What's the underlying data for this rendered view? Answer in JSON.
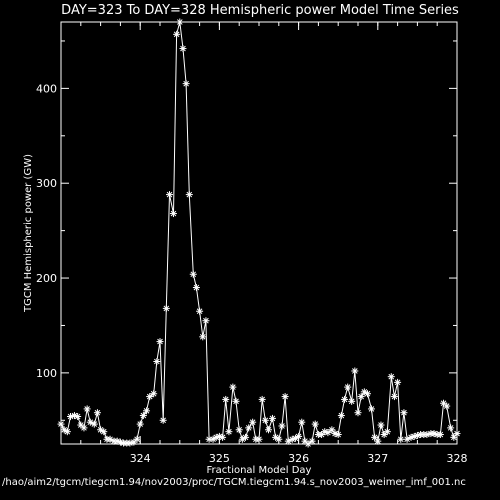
{
  "chart_data": {
    "type": "line",
    "title": "DAY=323 To DAY=328 Hemispheric power Model Time Series",
    "xlabel": "Fractional Model Day",
    "ylabel": "TGCM Hemispheric power (GW)",
    "footer": "/hao/aim2/tgcm/tiegcm1.94/nov2003/proc/TGCM.tiegcm1.94.s_nov2003_weimer_imf_001.nc",
    "xlim": [
      323.0,
      328.0
    ],
    "ylim": [
      25,
      470
    ],
    "xticks": [
      "324",
      "325",
      "326",
      "327",
      "328"
    ],
    "yticks": [
      "100",
      "200",
      "300",
      "400"
    ],
    "grid": false,
    "marker": "asterisk",
    "series": [
      {
        "x": [
          323.0,
          323.04,
          323.08,
          323.12,
          323.17,
          323.21,
          323.25,
          323.29,
          323.33,
          323.37,
          323.42,
          323.46,
          323.5,
          323.54,
          323.58,
          323.62,
          323.67,
          323.71,
          323.75,
          323.79,
          323.83,
          323.87,
          323.92,
          323.96,
          324.0,
          324.04,
          324.08,
          324.12,
          324.17,
          324.21,
          324.25,
          324.29,
          324.33,
          324.37,
          324.42,
          324.46,
          324.5,
          324.54,
          324.58,
          324.62,
          324.67,
          324.71,
          324.75,
          324.79,
          324.83,
          324.87,
          324.92,
          324.96,
          325.0,
          325.04,
          325.08,
          325.12,
          325.17,
          325.21,
          325.25,
          325.29,
          325.33,
          325.37,
          325.42,
          325.46,
          325.5,
          325.54,
          325.58,
          325.62,
          325.67,
          325.71,
          325.75,
          325.79,
          325.83,
          325.87,
          325.92,
          325.96,
          326.0,
          326.04,
          326.08,
          326.12,
          326.17,
          326.21,
          326.25,
          326.29,
          326.33,
          326.37,
          326.42,
          326.46,
          326.5,
          326.54,
          326.58,
          326.62,
          326.67,
          326.71,
          326.75,
          326.79,
          326.83,
          326.87,
          326.92,
          326.96,
          327.0,
          327.04,
          327.08,
          327.12,
          327.17,
          327.21,
          327.25,
          327.29,
          327.33,
          327.37,
          327.42,
          327.46,
          327.5,
          327.54,
          327.58,
          327.62,
          327.67,
          327.71,
          327.75,
          327.79,
          327.83,
          327.87,
          327.92,
          327.96,
          328.0
        ],
        "values": [
          46,
          40,
          38,
          54,
          55,
          54,
          45,
          42,
          62,
          48,
          46,
          58,
          40,
          38,
          30,
          30,
          28,
          28,
          27,
          26,
          26,
          26,
          27,
          30,
          46,
          55,
          60,
          75,
          78,
          112,
          133,
          50,
          168,
          288,
          268,
          457,
          470,
          442,
          405,
          288,
          204,
          190,
          165,
          138,
          155,
          30,
          30,
          32,
          33,
          32,
          72,
          38,
          85,
          70,
          40,
          30,
          32,
          42,
          48,
          30,
          30,
          72,
          50,
          40,
          52,
          32,
          30,
          44,
          75,
          28,
          30,
          31,
          33,
          48,
          28,
          25,
          28,
          46,
          35,
          35,
          38,
          37,
          40,
          36,
          35,
          55,
          72,
          85,
          70,
          102,
          58,
          75,
          80,
          78,
          62,
          32,
          28,
          45,
          35,
          38,
          96,
          75,
          90,
          30,
          58,
          30,
          32,
          33,
          34,
          35,
          35,
          35,
          36,
          36,
          35,
          35,
          68,
          65,
          42,
          32,
          36
        ]
      }
    ]
  }
}
